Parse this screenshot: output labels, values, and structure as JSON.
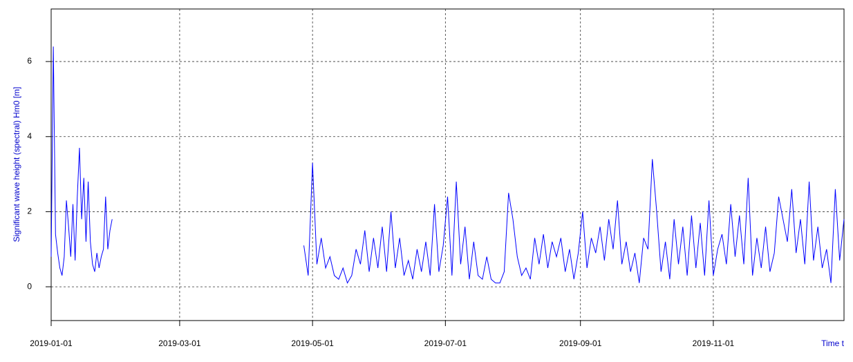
{
  "chart_data": {
    "type": "line",
    "xlabel": "Time t",
    "ylabel": "Significant wave height (spectral) Hm0 [m]",
    "xlim": [
      "2019-01-01",
      "2019-12-31"
    ],
    "xticks": [
      "2019-01-01",
      "2019-03-01",
      "2019-05-01",
      "2019-07-01",
      "2019-09-01",
      "2019-11-01"
    ],
    "ylim": [
      -0.9,
      7.4
    ],
    "yticks": [
      0,
      2,
      4,
      6
    ],
    "grid": true,
    "series": [
      {
        "color": "#0000ff",
        "x": [
          "2019-01-01",
          "2019-01-02",
          "2019-01-03",
          "2019-01-04",
          "2019-01-05",
          "2019-01-06",
          "2019-01-07",
          "2019-01-08",
          "2019-01-09",
          "2019-01-10",
          "2019-01-11",
          "2019-01-12",
          "2019-01-13",
          "2019-01-14",
          "2019-01-15",
          "2019-01-16",
          "2019-01-17",
          "2019-01-18",
          "2019-01-19",
          "2019-01-20",
          "2019-01-21",
          "2019-01-22",
          "2019-01-23",
          "2019-01-24",
          "2019-01-25",
          "2019-01-26",
          "2019-01-27",
          "2019-01-28",
          "2019-01-29",
          "2019-01-30",
          "2019-04-27",
          "2019-04-29",
          "2019-05-01",
          "2019-05-03",
          "2019-05-05",
          "2019-05-07",
          "2019-05-09",
          "2019-05-11",
          "2019-05-13",
          "2019-05-15",
          "2019-05-17",
          "2019-05-19",
          "2019-05-21",
          "2019-05-23",
          "2019-05-25",
          "2019-05-27",
          "2019-05-29",
          "2019-05-31",
          "2019-06-02",
          "2019-06-04",
          "2019-06-06",
          "2019-06-08",
          "2019-06-10",
          "2019-06-12",
          "2019-06-14",
          "2019-06-16",
          "2019-06-18",
          "2019-06-20",
          "2019-06-22",
          "2019-06-24",
          "2019-06-26",
          "2019-06-28",
          "2019-06-30",
          "2019-07-02",
          "2019-07-04",
          "2019-07-06",
          "2019-07-08",
          "2019-07-10",
          "2019-07-12",
          "2019-07-14",
          "2019-07-16",
          "2019-07-18",
          "2019-07-20",
          "2019-07-22",
          "2019-07-24",
          "2019-07-26",
          "2019-07-28",
          "2019-07-30",
          "2019-08-01",
          "2019-08-03",
          "2019-08-05",
          "2019-08-07",
          "2019-08-09",
          "2019-08-11",
          "2019-08-13",
          "2019-08-15",
          "2019-08-17",
          "2019-08-19",
          "2019-08-21",
          "2019-08-23",
          "2019-08-25",
          "2019-08-27",
          "2019-08-29",
          "2019-08-31",
          "2019-09-02",
          "2019-09-04",
          "2019-09-06",
          "2019-09-08",
          "2019-09-10",
          "2019-09-12",
          "2019-09-14",
          "2019-09-16",
          "2019-09-18",
          "2019-09-20",
          "2019-09-22",
          "2019-09-24",
          "2019-09-26",
          "2019-09-28",
          "2019-09-30",
          "2019-10-02",
          "2019-10-04",
          "2019-10-06",
          "2019-10-08",
          "2019-10-10",
          "2019-10-12",
          "2019-10-14",
          "2019-10-16",
          "2019-10-18",
          "2019-10-20",
          "2019-10-22",
          "2019-10-24",
          "2019-10-26",
          "2019-10-28",
          "2019-10-30",
          "2019-11-01",
          "2019-11-03",
          "2019-11-05",
          "2019-11-07",
          "2019-11-09",
          "2019-11-11",
          "2019-11-13",
          "2019-11-15",
          "2019-11-17",
          "2019-11-19",
          "2019-11-21",
          "2019-11-23",
          "2019-11-25",
          "2019-11-27",
          "2019-11-29",
          "2019-12-01",
          "2019-12-03",
          "2019-12-05",
          "2019-12-07",
          "2019-12-09",
          "2019-12-11",
          "2019-12-13",
          "2019-12-15",
          "2019-12-17",
          "2019-12-19",
          "2019-12-21",
          "2019-12-23",
          "2019-12-25",
          "2019-12-27",
          "2019-12-29",
          "2019-12-31"
        ],
        "values": [
          0.8,
          6.4,
          1.4,
          0.9,
          0.5,
          0.3,
          0.8,
          2.3,
          1.6,
          0.8,
          2.2,
          0.7,
          2.4,
          3.7,
          1.8,
          2.9,
          1.2,
          2.8,
          1.2,
          0.6,
          0.4,
          0.9,
          0.5,
          0.8,
          1.0,
          2.4,
          1.0,
          1.5,
          1.8,
          null,
          1.1,
          0.3,
          3.3,
          0.6,
          1.3,
          0.5,
          0.8,
          0.3,
          0.2,
          0.5,
          0.1,
          0.3,
          1.0,
          0.6,
          1.5,
          0.4,
          1.3,
          0.5,
          1.6,
          0.4,
          2.0,
          0.5,
          1.3,
          0.3,
          0.7,
          0.2,
          1.0,
          0.4,
          1.2,
          0.3,
          2.2,
          0.4,
          1.1,
          2.4,
          0.3,
          2.8,
          0.6,
          1.6,
          0.2,
          1.2,
          0.3,
          0.2,
          0.8,
          0.2,
          0.1,
          0.1,
          0.4,
          2.5,
          1.8,
          0.8,
          0.3,
          0.5,
          0.2,
          1.3,
          0.6,
          1.4,
          0.5,
          1.2,
          0.8,
          1.3,
          0.4,
          1.0,
          0.2,
          0.9,
          2.0,
          0.5,
          1.3,
          0.9,
          1.6,
          0.7,
          1.8,
          1.0,
          2.3,
          0.6,
          1.2,
          0.4,
          0.9,
          0.1,
          1.3,
          1.0,
          3.4,
          2.0,
          0.4,
          1.2,
          0.2,
          1.8,
          0.6,
          1.6,
          0.3,
          1.9,
          0.5,
          1.7,
          0.3,
          2.3,
          0.3,
          1.0,
          1.4,
          0.6,
          2.2,
          0.8,
          1.9,
          0.6,
          2.9,
          0.3,
          1.3,
          0.5,
          1.6,
          0.4,
          0.9,
          2.4,
          1.8,
          1.2,
          2.6,
          0.9,
          1.8,
          0.6,
          2.8,
          0.7,
          1.6,
          0.5,
          1.0,
          0.1,
          2.6,
          0.7,
          1.8
        ]
      }
    ]
  }
}
